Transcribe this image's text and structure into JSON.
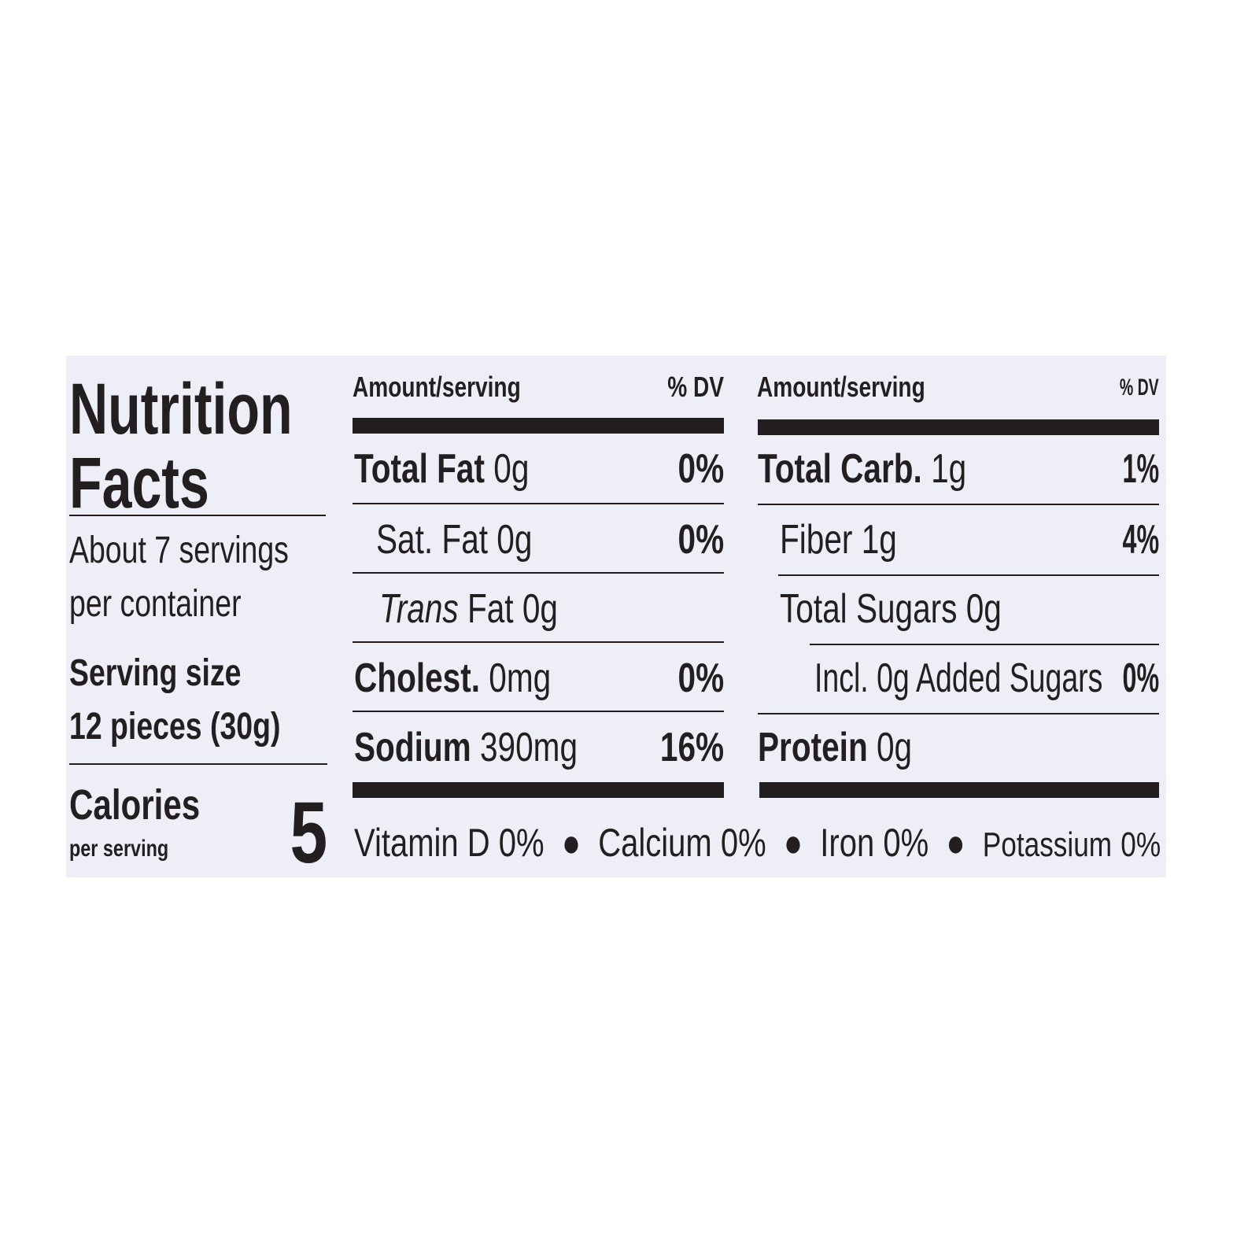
{
  "title": {
    "line1": "Nutrition",
    "line2": "Facts"
  },
  "servings": {
    "line1": "About 7 servings",
    "line2": "per container"
  },
  "serving_size": {
    "label": "Serving size",
    "value": "12 pieces (30g)"
  },
  "calories": {
    "label": "Calories",
    "sub": "per serving",
    "value": "5"
  },
  "left_table": {
    "header": {
      "amount": "Amount/serving",
      "dv": "% DV"
    },
    "rows": [
      {
        "name": "Total Fat",
        "amount": "0g",
        "dv": "0%"
      },
      {
        "name": "Sat. Fat",
        "amount": "0g",
        "dv": "0%"
      },
      {
        "name": "Trans",
        "name_suffix": "Fat",
        "amount": "0g",
        "dv": ""
      },
      {
        "name": "Cholest.",
        "amount": "0mg",
        "dv": "0%"
      },
      {
        "name": "Sodium",
        "amount": "390mg",
        "dv": "16%"
      }
    ]
  },
  "right_table": {
    "header": {
      "amount": "Amount/serving",
      "dv": "% DV"
    },
    "rows": [
      {
        "name": "Total Carb.",
        "amount": "1g",
        "dv": "1%"
      },
      {
        "name": "Fiber",
        "amount": "1g",
        "dv": "4%"
      },
      {
        "name": "Total Sugars",
        "amount": "0g",
        "dv": ""
      },
      {
        "name": "Incl. 0g Added Sugars",
        "amount": "",
        "dv": "0%"
      },
      {
        "name": "Protein",
        "amount": "0g",
        "dv": ""
      }
    ]
  },
  "micronutrients": [
    {
      "name": "Vitamin D",
      "dv": "0%"
    },
    {
      "name": "Calcium",
      "dv": "0%"
    },
    {
      "name": "Iron",
      "dv": "0%"
    },
    {
      "name": "Potassium",
      "dv": "0%"
    }
  ],
  "colors": {
    "ink": "#231f20",
    "label_background": "#eeeef6"
  }
}
